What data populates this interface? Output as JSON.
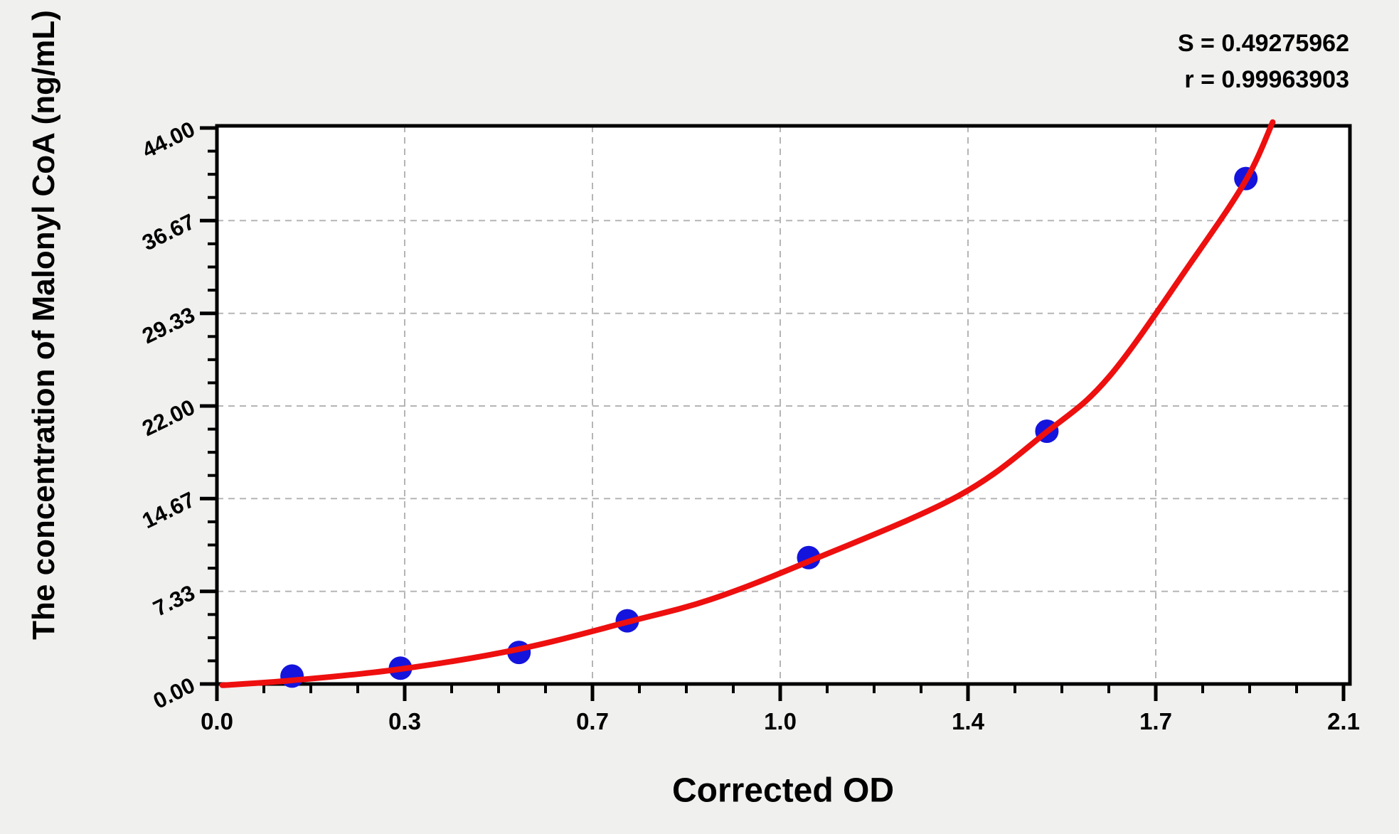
{
  "colors": {
    "figure_background": "#f0f0ee",
    "plot_background": "#ffffff",
    "axis": "#000000",
    "gridline": "#b5b5b5",
    "curve": "#ee0f0f",
    "point": "#1414dd",
    "text": "#000000"
  },
  "annotation": {
    "s_line": "S = 0.49275962",
    "r_line": "r = 0.99963903"
  },
  "chart_data": {
    "type": "scatter",
    "title": "",
    "xlabel": "Corrected OD",
    "ylabel": "The concentration of Malonyl CoA (ng/mL)",
    "xlim": [
      0,
      2.1
    ],
    "ylim": [
      0,
      44
    ],
    "x_ticks": {
      "values": [
        0,
        0.35,
        0.7,
        1.05,
        1.4,
        1.75,
        2.1
      ],
      "labels": [
        "0.0",
        "0.3",
        "0.7",
        "1.0",
        "1.4",
        "1.7",
        "2.1"
      ]
    },
    "y_ticks": {
      "values": [
        0,
        7.33,
        14.67,
        22,
        29.33,
        36.67,
        44
      ],
      "labels": [
        "0.00",
        "7.33",
        "14.67",
        "22.00",
        "29.33",
        "36.67",
        "44.00"
      ]
    },
    "minor_ticks_between_major": 3,
    "grid": {
      "style": "dashed",
      "on_major_x": true,
      "on_major_y": true
    },
    "legend": "none",
    "fit_stats": {
      "S": 0.49275962,
      "r": 0.99963903
    },
    "series": [
      {
        "name": "standard-points",
        "type": "scatter",
        "x": [
          0.14,
          0.342,
          0.563,
          0.765,
          1.103,
          1.547,
          1.918
        ],
        "y": [
          0.625,
          1.25,
          2.5,
          5,
          10,
          20,
          40
        ]
      },
      {
        "name": "fitted-curve",
        "type": "line",
        "points": [
          [
            0.01,
            -0.1
          ],
          [
            0.139,
            0.28
          ],
          [
            0.342,
            1.18
          ],
          [
            0.563,
            2.76
          ],
          [
            0.765,
            4.9
          ],
          [
            0.921,
            6.7
          ],
          [
            1.102,
            9.68
          ],
          [
            1.381,
            14.86
          ],
          [
            1.546,
            19.92
          ],
          [
            1.663,
            24.31
          ],
          [
            1.815,
            33.31
          ],
          [
            1.917,
            39.79
          ],
          [
            1.968,
            44.46
          ]
        ]
      }
    ]
  }
}
